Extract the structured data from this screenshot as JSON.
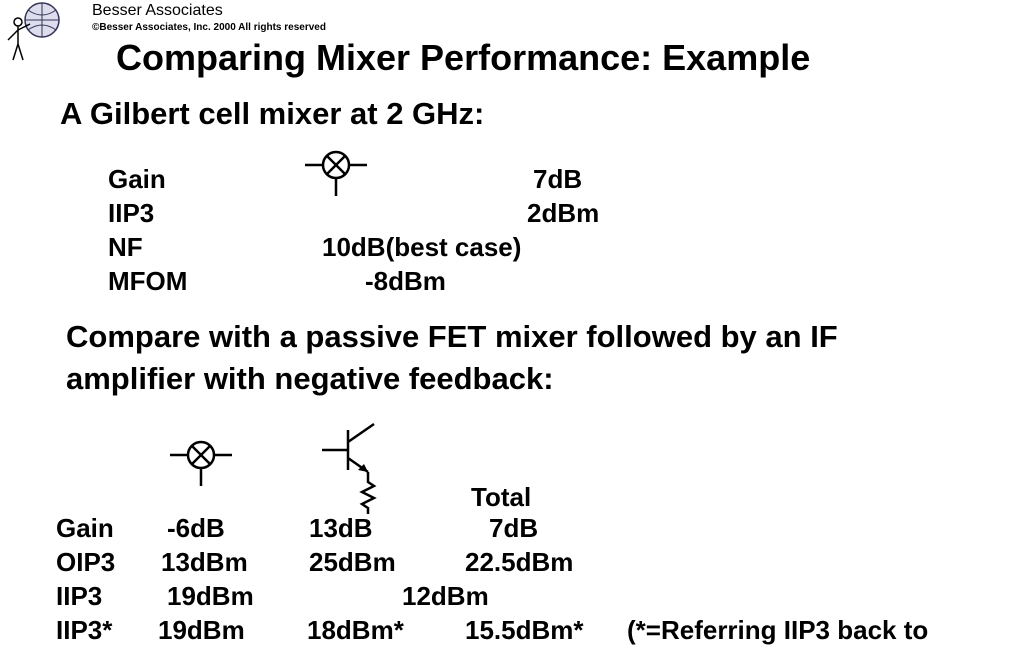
{
  "header": {
    "company": "Besser Associates",
    "copyright": "©Besser Associates, Inc. 2000  All rights reserved"
  },
  "title": "Comparing Mixer Performance: Example",
  "section1": {
    "heading": "A Gilbert cell mixer at 2 GHz:",
    "rows": [
      [
        "Gain",
        "7dB"
      ],
      [
        "IIP3",
        "2dBm"
      ],
      [
        "NF",
        "10dB(best case)"
      ],
      [
        "MFOM",
        "-8dBm"
      ]
    ]
  },
  "section2": {
    "heading_lines": [
      "Compare with a passive FET mixer followed by an IF",
      "amplifier with negative feedback:"
    ],
    "column_header": "Total",
    "rows": [
      [
        "Gain",
        "-6dB",
        "13dB",
        "7dB"
      ],
      [
        "OIP3",
        "13dBm",
        "25dBm",
        "22.5dBm"
      ],
      [
        "IIP3",
        "19dBm",
        "12dBm"
      ],
      [
        "IIP3*",
        "19dBm",
        "18dBm*",
        "15.5dBm*",
        "(*=Referring IIP3 back to"
      ]
    ]
  }
}
